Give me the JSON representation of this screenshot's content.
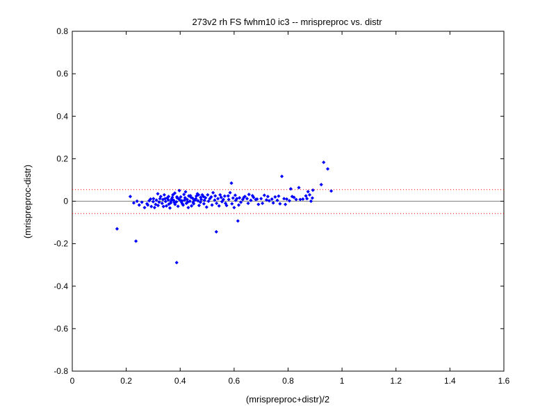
{
  "chart_data": {
    "type": "scatter",
    "title": "273v2 rh FS fwhm10 ic3 -- mrispreproc vs. distr",
    "xlabel": "(mrispreproc+distr)/2",
    "ylabel": "(mrispreproc-distr)",
    "xlim": [
      0,
      1.6
    ],
    "ylim": [
      -0.8,
      0.8
    ],
    "xticks": [
      "0",
      "0.2",
      "0.4",
      "0.6",
      "0.8",
      "1",
      "1.2",
      "1.4",
      "1.6"
    ],
    "yticks": [
      "0.8",
      "0.6",
      "0.4",
      "0.2",
      "0",
      "-0.2",
      "-0.4",
      "-0.6",
      "-0.8"
    ],
    "grid": false,
    "colors": {
      "points": "#0000ff",
      "limits": "#ff0000",
      "axes": "#000000"
    },
    "limit_lines": [
      0.055,
      -0.058
    ],
    "series": [
      {
        "marker": "diamond",
        "points": [
          [
            0.166,
            -0.13
          ],
          [
            0.215,
            0.022
          ],
          [
            0.236,
            -0.188
          ],
          [
            0.387,
            -0.289
          ],
          [
            0.534,
            -0.144
          ],
          [
            0.614,
            -0.093
          ],
          [
            0.932,
            0.183
          ],
          [
            0.947,
            0.152
          ],
          [
            0.777,
            0.117
          ],
          [
            0.96,
            0.048
          ],
          [
            0.923,
            0.078
          ],
          [
            0.892,
            0.052
          ],
          [
            0.84,
            0.064
          ],
          [
            0.81,
            0.058
          ],
          [
            0.59,
            0.085
          ],
          [
            0.874,
            0.045
          ],
          [
            0.89,
            0.015
          ],
          [
            0.866,
            0.025
          ],
          [
            0.845,
            0.008
          ],
          [
            0.822,
            0.018
          ],
          [
            0.795,
            0.01
          ],
          [
            0.77,
            -0.012
          ],
          [
            0.752,
            0.02
          ],
          [
            0.73,
            0.002
          ],
          [
            0.712,
            0.028
          ],
          [
            0.69,
            -0.015
          ],
          [
            0.672,
            0.018
          ],
          [
            0.655,
            0.032
          ],
          [
            0.64,
            0.022
          ],
          [
            0.625,
            -0.005
          ],
          [
            0.61,
            0.012
          ],
          [
            0.6,
            -0.03
          ],
          [
            0.585,
            0.04
          ],
          [
            0.572,
            -0.02
          ],
          [
            0.56,
            0.008
          ],
          [
            0.548,
            0.03
          ],
          [
            0.535,
            -0.01
          ],
          [
            0.522,
            0.04
          ],
          [
            0.51,
            0.012
          ],
          [
            0.498,
            -0.028
          ],
          [
            0.486,
            0.022
          ],
          [
            0.475,
            -0.005
          ],
          [
            0.464,
            0.035
          ],
          [
            0.452,
            0.004
          ],
          [
            0.442,
            -0.022
          ],
          [
            0.432,
            0.025
          ],
          [
            0.423,
            -0.01
          ],
          [
            0.414,
            0.032
          ],
          [
            0.405,
            -0.004
          ],
          [
            0.397,
            0.05
          ],
          [
            0.389,
            0.015
          ],
          [
            0.381,
            -0.015
          ],
          [
            0.373,
            0.03
          ],
          [
            0.365,
            -0.008
          ],
          [
            0.357,
            0.022
          ],
          [
            0.349,
            -0.022
          ],
          [
            0.341,
            0.03
          ],
          [
            0.333,
            -0.01
          ],
          [
            0.325,
            0.012
          ],
          [
            0.317,
            0.035
          ],
          [
            0.309,
            -0.015
          ],
          [
            0.301,
            0.012
          ],
          [
            0.293,
            -0.025
          ],
          [
            0.285,
            0.002
          ],
          [
            0.277,
            -0.012
          ],
          [
            0.268,
            -0.03
          ],
          [
            0.258,
            -0.005
          ],
          [
            0.248,
            -0.018
          ],
          [
            0.24,
            0.0
          ],
          [
            0.228,
            -0.008
          ],
          [
            0.3,
            -0.002
          ],
          [
            0.312,
            0.005
          ],
          [
            0.322,
            -0.004
          ],
          [
            0.336,
            0.008
          ],
          [
            0.346,
            -0.001
          ],
          [
            0.356,
            0.006
          ],
          [
            0.366,
            0.0
          ],
          [
            0.376,
            0.004
          ],
          [
            0.386,
            -0.003
          ],
          [
            0.396,
            0.01
          ],
          [
            0.406,
            0.002
          ],
          [
            0.416,
            0.005
          ],
          [
            0.426,
            0.008
          ],
          [
            0.436,
            0.0
          ],
          [
            0.446,
            0.014
          ],
          [
            0.456,
            0.006
          ],
          [
            0.466,
            0.002
          ],
          [
            0.476,
            0.018
          ],
          [
            0.49,
            0.004
          ],
          [
            0.505,
            0.0
          ],
          [
            0.515,
            0.02
          ],
          [
            0.528,
            0.005
          ],
          [
            0.54,
            0.012
          ],
          [
            0.555,
            -0.002
          ],
          [
            0.565,
            0.024
          ],
          [
            0.58,
            0.008
          ],
          [
            0.596,
            0.015
          ],
          [
            0.606,
            0.004
          ],
          [
            0.62,
            0.016
          ],
          [
            0.632,
            0.008
          ],
          [
            0.648,
            0.012
          ],
          [
            0.662,
            0.004
          ],
          [
            0.68,
            0.008
          ],
          [
            0.7,
            0.012
          ],
          [
            0.72,
            0.006
          ],
          [
            0.74,
            0.01
          ],
          [
            0.76,
            0.004
          ],
          [
            0.785,
            0.012
          ],
          [
            0.805,
            0.002
          ],
          [
            0.83,
            0.008
          ],
          [
            0.28,
            -0.018
          ],
          [
            0.29,
            0.01
          ],
          [
            0.305,
            -0.03
          ],
          [
            0.318,
            -0.02
          ],
          [
            0.328,
            0.022
          ],
          [
            0.338,
            -0.025
          ],
          [
            0.352,
            0.015
          ],
          [
            0.362,
            -0.032
          ],
          [
            0.371,
            0.018
          ],
          [
            0.38,
            0.038
          ],
          [
            0.392,
            -0.024
          ],
          [
            0.402,
            0.02
          ],
          [
            0.411,
            -0.018
          ],
          [
            0.42,
            0.044
          ],
          [
            0.43,
            -0.03
          ],
          [
            0.44,
            0.018
          ],
          [
            0.45,
            -0.012
          ],
          [
            0.46,
            0.024
          ],
          [
            0.47,
            -0.02
          ],
          [
            0.482,
            0.03
          ],
          [
            0.494,
            0.016
          ],
          [
            0.502,
            0.03
          ],
          [
            0.518,
            -0.018
          ],
          [
            0.53,
            0.025
          ],
          [
            0.544,
            -0.022
          ],
          [
            0.552,
            0.018
          ],
          [
            0.568,
            -0.01
          ],
          [
            0.578,
            0.025
          ],
          [
            0.592,
            -0.012
          ],
          [
            0.604,
            0.028
          ],
          [
            0.617,
            -0.018
          ],
          [
            0.636,
            0.018
          ],
          [
            0.652,
            -0.01
          ],
          [
            0.668,
            0.026
          ],
          [
            0.685,
            0.01
          ],
          [
            0.705,
            -0.01
          ],
          [
            0.725,
            0.022
          ],
          [
            0.745,
            -0.008
          ],
          [
            0.765,
            0.024
          ],
          [
            0.79,
            -0.015
          ],
          [
            0.815,
            0.022
          ],
          [
            0.855,
            0.01
          ],
          [
            0.88,
            0.03
          ],
          [
            0.885,
            0.0
          ],
          [
            0.87,
            0.012
          ],
          [
            0.344,
            0.012
          ],
          [
            0.358,
            -0.014
          ],
          [
            0.368,
            0.01
          ],
          [
            0.378,
            -0.006
          ],
          [
            0.388,
            0.02
          ],
          [
            0.398,
            0.006
          ],
          [
            0.408,
            -0.012
          ],
          [
            0.418,
            0.016
          ],
          [
            0.428,
            -0.004
          ],
          [
            0.438,
            0.026
          ],
          [
            0.448,
            -0.006
          ],
          [
            0.458,
            0.012
          ],
          [
            0.468,
            0.03
          ],
          [
            0.478,
            0.008
          ],
          [
            0.488,
            -0.012
          ]
        ]
      }
    ]
  }
}
